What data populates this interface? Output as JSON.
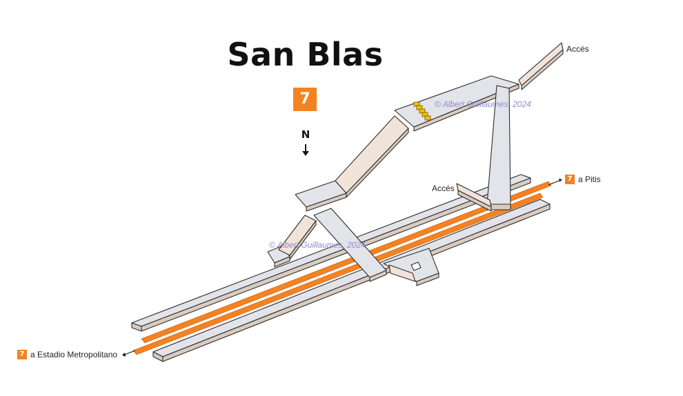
{
  "station": {
    "name": "San Blas",
    "line": "7"
  },
  "compass": {
    "label": "N"
  },
  "exits": {
    "top": "Accés",
    "middle": "Accés"
  },
  "destinations": {
    "east": {
      "line": "7",
      "label": "a Pitis"
    },
    "west": {
      "line": "7",
      "label": "a Estadio Metropolitano"
    }
  },
  "credits": {
    "upper": "© Albert Guillaumes, 2024",
    "lower": "© Albert Guillaumes, 2024"
  },
  "colors": {
    "line7": "#f58220",
    "floor": "#e3e3ea",
    "ramp": "#f2e3d8",
    "edge": "#2b2b2b",
    "watermark": "#8c8ccf"
  }
}
